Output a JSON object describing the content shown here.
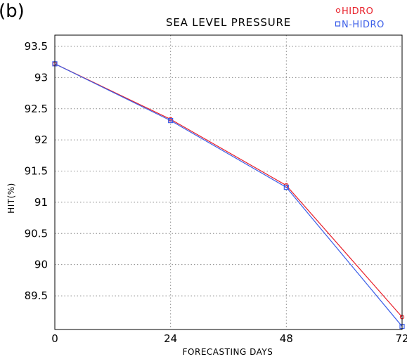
{
  "panel_label": "(b)",
  "chart_data": {
    "type": "line",
    "title": "SEA LEVEL PRESSURE",
    "xlabel": "FORECASTING DAYS",
    "ylabel": "HIT(%)",
    "x": [
      0,
      24,
      48,
      72
    ],
    "x_ticks": [
      0,
      24,
      48,
      72
    ],
    "y_ticks": [
      93.5,
      93,
      92.5,
      92,
      91.5,
      91,
      90.5,
      90,
      89.5
    ],
    "xlim": [
      0,
      72
    ],
    "ylim": [
      88.96,
      93.68
    ],
    "grid": true,
    "legend_position": "top-right",
    "series": [
      {
        "name": "HIDRO",
        "marker": "circle",
        "color": "#e8202a",
        "values": [
          93.22,
          92.33,
          91.27,
          89.16
        ]
      },
      {
        "name": "N-HIDRO",
        "marker": "square",
        "color": "#3b5ee8",
        "values": [
          93.22,
          92.31,
          91.24,
          89.01
        ]
      }
    ]
  }
}
